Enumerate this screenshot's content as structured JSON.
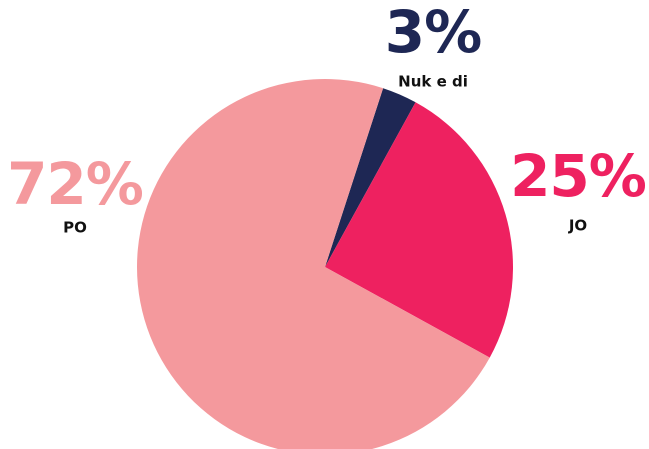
{
  "chart_data": {
    "type": "pie",
    "categories": [
      "Nuk e di",
      "JO",
      "PO"
    ],
    "values": [
      3,
      25,
      72
    ],
    "value_labels": [
      "3%",
      "25%",
      "72%"
    ],
    "colors": [
      "#1e2754",
      "#ee2160",
      "#f4999d"
    ]
  }
}
